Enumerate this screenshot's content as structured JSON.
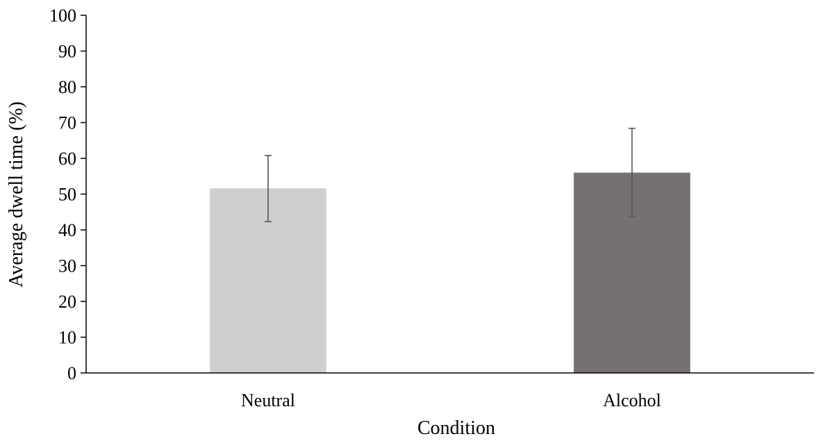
{
  "chart_data": {
    "type": "bar",
    "title": "",
    "xlabel": "Condition",
    "ylabel": "Average dwell time (%)",
    "ylim": [
      0,
      100
    ],
    "yticks": [
      0,
      10,
      20,
      30,
      40,
      50,
      60,
      70,
      80,
      90,
      100
    ],
    "categories": [
      "Neutral",
      "Alcohol"
    ],
    "values": [
      51.6,
      56.0
    ],
    "error_upper": [
      60.8,
      68.4
    ],
    "error_lower": [
      42.3,
      43.6
    ],
    "bar_colors": [
      "#d0cecf",
      "#767171"
    ],
    "grid": false,
    "legend": false
  }
}
